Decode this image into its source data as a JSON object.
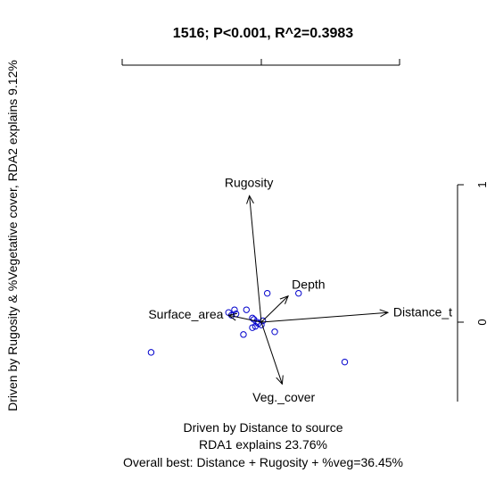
{
  "chart_data": {
    "type": "scatter",
    "title": "1516; P<0.001, R^2=0.3983",
    "xlabel": [
      "Driven by Distance to source",
      "RDA1 explains 23.76%",
      "Overall best: Distance + Rugosity + %veg=36.45%"
    ],
    "ylabel": "Driven by Rugosity & %Vegetative cover, RDA2 explains 9.12%",
    "right_axis": {
      "ticks": [
        "1",
        "0"
      ],
      "values": [
        1,
        0
      ]
    },
    "origin": [
      0,
      0
    ],
    "vectors": [
      {
        "name": "Rugosity",
        "x": -0.08,
        "y": 0.92
      },
      {
        "name": "Depth",
        "x": 0.18,
        "y": 0.19
      },
      {
        "name": "Surface_area",
        "x": -0.22,
        "y": 0.05
      },
      {
        "name": "Distance_t",
        "x": 0.85,
        "y": 0.07
      },
      {
        "name": "Veg._cover",
        "x": 0.14,
        "y": -0.45
      }
    ],
    "points": [
      {
        "x": -0.74,
        "y": -0.22
      },
      {
        "x": 0.56,
        "y": -0.29
      },
      {
        "x": 0.25,
        "y": 0.21
      },
      {
        "x": 0.04,
        "y": 0.21
      },
      {
        "x": 0.09,
        "y": -0.07
      },
      {
        "x": -0.12,
        "y": -0.09
      },
      {
        "x": -0.1,
        "y": 0.09
      },
      {
        "x": -0.18,
        "y": 0.09
      },
      {
        "x": -0.22,
        "y": 0.07
      },
      {
        "x": -0.2,
        "y": 0.05
      },
      {
        "x": -0.17,
        "y": 0.06
      },
      {
        "x": -0.06,
        "y": 0.03
      },
      {
        "x": -0.05,
        "y": 0.02
      },
      {
        "x": -0.03,
        "y": 0.0
      },
      {
        "x": -0.02,
        "y": -0.01
      },
      {
        "x": 0.0,
        "y": -0.02
      },
      {
        "x": -0.06,
        "y": -0.04
      },
      {
        "x": -0.04,
        "y": -0.03
      },
      {
        "x": 0.01,
        "y": 0.01
      }
    ],
    "point_color": "#0000cc",
    "arrow_color": "#000000"
  }
}
